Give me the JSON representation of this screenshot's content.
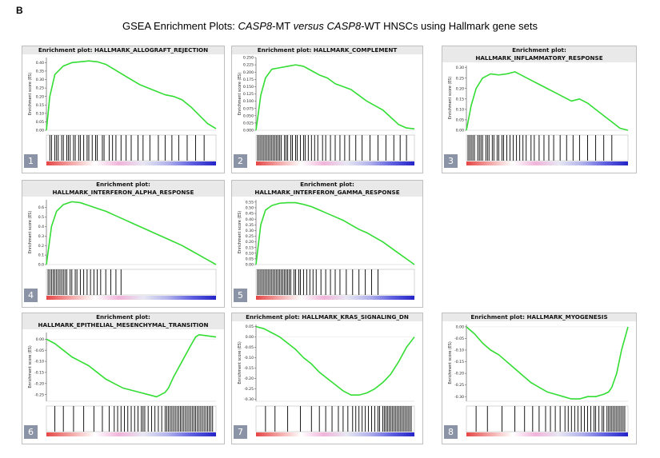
{
  "panel_letter": "B",
  "figure_title": {
    "prefix": "GSEA Enrichment Plots: ",
    "gene1": "CASP8",
    "mid1": "-MT ",
    "versus": "versus",
    "mid2": " ",
    "gene2": "CASP8",
    "suffix": "-WT HNSCs using Hallmark gene sets"
  },
  "y_axis_label": "Enrichment score (ES)",
  "colors": {
    "curve": "#33dd33",
    "header_bg": "#e9e9e9",
    "badge_bg": "#8b93a6",
    "ranked_list_high": "#e64545",
    "ranked_list_low": "#2424c8"
  },
  "chart_data": [
    {
      "type": "line",
      "badge": "1",
      "title_lines": [
        "Enrichment plot: HALLMARK_ALLOGRAFT_REJECTION"
      ],
      "ylabel": "Enrichment score (ES)",
      "yticks": [
        "0.40",
        "0.35",
        "0.30",
        "0.25",
        "0.20",
        "0.15",
        "0.10",
        "0.05",
        "0.00"
      ],
      "ylim": [
        0,
        0.43
      ],
      "x": [
        0,
        0.02,
        0.05,
        0.1,
        0.15,
        0.2,
        0.25,
        0.3,
        0.35,
        0.4,
        0.45,
        0.5,
        0.55,
        0.6,
        0.65,
        0.7,
        0.75,
        0.8,
        0.85,
        0.9,
        0.95,
        1.0
      ],
      "y": [
        0,
        0.2,
        0.33,
        0.38,
        0.4,
        0.405,
        0.41,
        0.405,
        0.39,
        0.36,
        0.33,
        0.3,
        0.27,
        0.25,
        0.23,
        0.21,
        0.2,
        0.18,
        0.14,
        0.09,
        0.04,
        0.01
      ],
      "hits": [
        0.02,
        0.03,
        0.05,
        0.06,
        0.07,
        0.09,
        0.1,
        0.12,
        0.13,
        0.14,
        0.16,
        0.17,
        0.19,
        0.2,
        0.22,
        0.24,
        0.25,
        0.27,
        0.29,
        0.3,
        0.33,
        0.34,
        0.37,
        0.39,
        0.41,
        0.44,
        0.47,
        0.5,
        0.54,
        0.57,
        0.61,
        0.66,
        0.7,
        0.74,
        0.78,
        0.83,
        0.88,
        0.93
      ]
    },
    {
      "type": "line",
      "badge": "2",
      "title_lines": [
        "Enrichment plot: HALLMARK_COMPLEMENT"
      ],
      "ylabel": "Enrichment score (ES)",
      "yticks": [
        "0.250",
        "0.225",
        "0.200",
        "0.175",
        "0.150",
        "0.125",
        "0.100",
        "0.075",
        "0.050",
        "0.025",
        "0.000"
      ],
      "ylim": [
        0,
        0.25
      ],
      "x": [
        0,
        0.03,
        0.06,
        0.1,
        0.15,
        0.2,
        0.25,
        0.3,
        0.35,
        0.4,
        0.45,
        0.5,
        0.55,
        0.6,
        0.65,
        0.7,
        0.75,
        0.8,
        0.85,
        0.9,
        0.95,
        1.0
      ],
      "y": [
        0,
        0.12,
        0.18,
        0.21,
        0.215,
        0.22,
        0.225,
        0.22,
        0.205,
        0.19,
        0.18,
        0.16,
        0.15,
        0.14,
        0.12,
        0.1,
        0.085,
        0.07,
        0.045,
        0.02,
        0.008,
        0.005
      ],
      "hits": [
        0.01,
        0.02,
        0.03,
        0.04,
        0.05,
        0.06,
        0.07,
        0.08,
        0.09,
        0.1,
        0.11,
        0.12,
        0.13,
        0.14,
        0.15,
        0.16,
        0.18,
        0.19,
        0.2,
        0.22,
        0.23,
        0.25,
        0.26,
        0.28,
        0.3,
        0.31,
        0.33,
        0.35,
        0.37,
        0.39,
        0.42,
        0.44,
        0.47,
        0.5,
        0.53,
        0.56,
        0.59,
        0.63,
        0.67,
        0.72,
        0.77,
        0.82,
        0.87,
        0.91,
        0.95
      ]
    },
    {
      "type": "line",
      "badge": "3",
      "title_lines": [
        "Enrichment plot:",
        "HALLMARK_INFLAMMATORY_RESPONSE"
      ],
      "ylabel": "Enrichment score (ES)",
      "yticks": [
        "0.30",
        "0.25",
        "0.20",
        "0.15",
        "0.10",
        "0.05",
        "0.00"
      ],
      "ylim": [
        0,
        0.31
      ],
      "x": [
        0,
        0.03,
        0.06,
        0.1,
        0.15,
        0.2,
        0.25,
        0.3,
        0.35,
        0.4,
        0.45,
        0.5,
        0.55,
        0.6,
        0.65,
        0.7,
        0.75,
        0.8,
        0.85,
        0.9,
        0.95,
        1.0
      ],
      "y": [
        0,
        0.12,
        0.2,
        0.25,
        0.27,
        0.265,
        0.27,
        0.28,
        0.26,
        0.24,
        0.22,
        0.2,
        0.18,
        0.16,
        0.14,
        0.15,
        0.13,
        0.1,
        0.07,
        0.04,
        0.01,
        0.0
      ],
      "hits": [
        0.01,
        0.02,
        0.03,
        0.04,
        0.05,
        0.07,
        0.08,
        0.09,
        0.1,
        0.12,
        0.13,
        0.14,
        0.16,
        0.17,
        0.19,
        0.2,
        0.22,
        0.23,
        0.25,
        0.27,
        0.29,
        0.31,
        0.33,
        0.35,
        0.37,
        0.4,
        0.42,
        0.45,
        0.48,
        0.51,
        0.54,
        0.58,
        0.62,
        0.66,
        0.7,
        0.75,
        0.8,
        0.85,
        0.9
      ]
    },
    {
      "type": "line",
      "badge": "4",
      "title_lines": [
        "Enrichment plot:",
        "HALLMARK_INTERFERON_ALPHA_RESPONSE"
      ],
      "ylabel": "Enrichment score (ES)",
      "yticks": [
        "0.6",
        "0.5",
        "0.4",
        "0.3",
        "0.2",
        "0.1",
        "0.0"
      ],
      "ylim": [
        0,
        0.68
      ],
      "x": [
        0,
        0.03,
        0.06,
        0.1,
        0.15,
        0.2,
        0.25,
        0.3,
        0.35,
        0.4,
        0.45,
        0.5,
        0.55,
        0.6,
        0.65,
        0.7,
        0.75,
        0.8,
        0.85,
        0.9,
        0.95,
        1.0
      ],
      "y": [
        0,
        0.4,
        0.56,
        0.63,
        0.66,
        0.65,
        0.62,
        0.59,
        0.56,
        0.52,
        0.48,
        0.44,
        0.4,
        0.36,
        0.32,
        0.28,
        0.24,
        0.2,
        0.15,
        0.1,
        0.05,
        0.0
      ],
      "hits": [
        0.01,
        0.02,
        0.03,
        0.04,
        0.05,
        0.06,
        0.07,
        0.08,
        0.09,
        0.1,
        0.11,
        0.12,
        0.14,
        0.15,
        0.17,
        0.18,
        0.2,
        0.22,
        0.24,
        0.26,
        0.28,
        0.3,
        0.32,
        0.35,
        0.38,
        0.41,
        0.44
      ]
    },
    {
      "type": "line",
      "badge": "5",
      "title_lines": [
        "Enrichment plot:",
        "HALLMARK_INTERFERON_GAMMA_RESPONSE"
      ],
      "ylabel": "Enrichment score (ES)",
      "yticks": [
        "0.55",
        "0.50",
        "0.45",
        "0.40",
        "0.35",
        "0.30",
        "0.25",
        "0.20",
        "0.15",
        "0.10",
        "0.05",
        "0.00"
      ],
      "ylim": [
        0,
        0.57
      ],
      "x": [
        0,
        0.03,
        0.06,
        0.1,
        0.15,
        0.2,
        0.25,
        0.3,
        0.35,
        0.4,
        0.45,
        0.5,
        0.55,
        0.6,
        0.65,
        0.7,
        0.75,
        0.8,
        0.85,
        0.9,
        0.95,
        1.0
      ],
      "y": [
        0,
        0.35,
        0.48,
        0.52,
        0.54,
        0.545,
        0.545,
        0.53,
        0.51,
        0.48,
        0.45,
        0.42,
        0.39,
        0.35,
        0.31,
        0.28,
        0.24,
        0.2,
        0.15,
        0.1,
        0.05,
        0.0
      ],
      "hits": [
        0.01,
        0.02,
        0.03,
        0.04,
        0.05,
        0.06,
        0.07,
        0.08,
        0.09,
        0.1,
        0.11,
        0.12,
        0.13,
        0.14,
        0.15,
        0.16,
        0.17,
        0.18,
        0.19,
        0.2,
        0.21,
        0.22,
        0.24,
        0.25,
        0.27,
        0.28,
        0.3,
        0.32,
        0.34,
        0.36,
        0.38,
        0.41,
        0.44,
        0.47,
        0.5,
        0.53,
        0.57,
        0.61,
        0.65,
        0.69,
        0.73,
        0.77
      ]
    },
    {
      "type": "line",
      "badge": "6",
      "title_lines": [
        "Enrichment plot:",
        "HALLMARK_EPITHELIAL_MESENCHYMAL_TRANSITION"
      ],
      "ylabel": "Enrichment score (ES)",
      "yticks": [
        "0.00",
        "-0.05",
        "-0.10",
        "-0.15",
        "-0.20",
        "-0.25"
      ],
      "ylim": [
        -0.28,
        0.03
      ],
      "x": [
        0,
        0.05,
        0.1,
        0.15,
        0.2,
        0.25,
        0.3,
        0.35,
        0.4,
        0.45,
        0.5,
        0.55,
        0.6,
        0.65,
        0.7,
        0.72,
        0.75,
        0.8,
        0.85,
        0.88,
        0.9,
        0.95,
        1.0
      ],
      "y": [
        0,
        -0.02,
        -0.05,
        -0.08,
        -0.1,
        -0.12,
        -0.15,
        -0.18,
        -0.2,
        -0.22,
        -0.23,
        -0.24,
        -0.25,
        -0.26,
        -0.24,
        -0.22,
        -0.17,
        -0.1,
        -0.03,
        0.01,
        0.02,
        0.015,
        0.01
      ],
      "hits": [
        0.05,
        0.1,
        0.16,
        0.22,
        0.28,
        0.33,
        0.37,
        0.4,
        0.42,
        0.44,
        0.46,
        0.48,
        0.5,
        0.52,
        0.54,
        0.56,
        0.57,
        0.58,
        0.6,
        0.62,
        0.64,
        0.66,
        0.68,
        0.7,
        0.71,
        0.72,
        0.73,
        0.74,
        0.75,
        0.76,
        0.77,
        0.78,
        0.79,
        0.8,
        0.81,
        0.82,
        0.83,
        0.84,
        0.85,
        0.86,
        0.87,
        0.88,
        0.89,
        0.9,
        0.91,
        0.92,
        0.93,
        0.94,
        0.95,
        0.96,
        0.97,
        0.98
      ]
    },
    {
      "type": "line",
      "badge": "7",
      "title_lines": [
        "Enrichment plot: HALLMARK_KRAS_SIGNALING_DN"
      ],
      "ylabel": "Enrichment score (ES)",
      "yticks": [
        "0.05",
        "0.00",
        "-0.05",
        "-0.10",
        "-0.15",
        "-0.20",
        "-0.25",
        "-0.30"
      ],
      "ylim": [
        -0.31,
        0.06
      ],
      "x": [
        0,
        0.05,
        0.1,
        0.15,
        0.2,
        0.25,
        0.3,
        0.35,
        0.4,
        0.45,
        0.5,
        0.55,
        0.6,
        0.65,
        0.7,
        0.75,
        0.8,
        0.85,
        0.9,
        0.95,
        1.0
      ],
      "y": [
        0.05,
        0.04,
        0.02,
        0.0,
        -0.03,
        -0.06,
        -0.1,
        -0.13,
        -0.17,
        -0.2,
        -0.23,
        -0.26,
        -0.28,
        -0.28,
        -0.27,
        -0.25,
        -0.22,
        -0.18,
        -0.12,
        -0.05,
        0.0
      ],
      "hits": [
        0.06,
        0.12,
        0.2,
        0.28,
        0.35,
        0.4,
        0.44,
        0.48,
        0.52,
        0.55,
        0.58,
        0.61,
        0.63,
        0.65,
        0.67,
        0.69,
        0.71,
        0.73,
        0.75,
        0.77,
        0.78,
        0.8,
        0.81,
        0.82,
        0.83,
        0.84,
        0.85,
        0.86,
        0.87,
        0.88,
        0.89,
        0.9,
        0.91,
        0.92,
        0.93,
        0.94,
        0.95,
        0.96,
        0.97,
        0.98
      ]
    },
    {
      "type": "line",
      "badge": "8",
      "title_lines": [
        "Enrichment plot: HALLMARK_MYOGENESIS"
      ],
      "ylabel": "Enrichment score (ES)",
      "yticks": [
        "0.00",
        "-0.05",
        "-0.10",
        "-0.15",
        "-0.20",
        "-0.25",
        "-0.30"
      ],
      "ylim": [
        -0.32,
        0.01
      ],
      "x": [
        0,
        0.05,
        0.1,
        0.15,
        0.2,
        0.25,
        0.3,
        0.35,
        0.4,
        0.45,
        0.5,
        0.55,
        0.6,
        0.65,
        0.7,
        0.75,
        0.8,
        0.85,
        0.88,
        0.9,
        0.93,
        0.96,
        1.0
      ],
      "y": [
        0,
        -0.03,
        -0.07,
        -0.1,
        -0.12,
        -0.15,
        -0.18,
        -0.21,
        -0.24,
        -0.26,
        -0.28,
        -0.29,
        -0.3,
        -0.31,
        -0.31,
        -0.3,
        -0.3,
        -0.29,
        -0.28,
        -0.26,
        -0.2,
        -0.1,
        0.0
      ],
      "hits": [
        0.06,
        0.13,
        0.22,
        0.3,
        0.36,
        0.41,
        0.45,
        0.49,
        0.52,
        0.55,
        0.58,
        0.61,
        0.63,
        0.65,
        0.67,
        0.69,
        0.71,
        0.73,
        0.75,
        0.77,
        0.79,
        0.8,
        0.82,
        0.84,
        0.85,
        0.87,
        0.88,
        0.89,
        0.9,
        0.91,
        0.92,
        0.93,
        0.94,
        0.95,
        0.96,
        0.97,
        0.98
      ]
    }
  ]
}
